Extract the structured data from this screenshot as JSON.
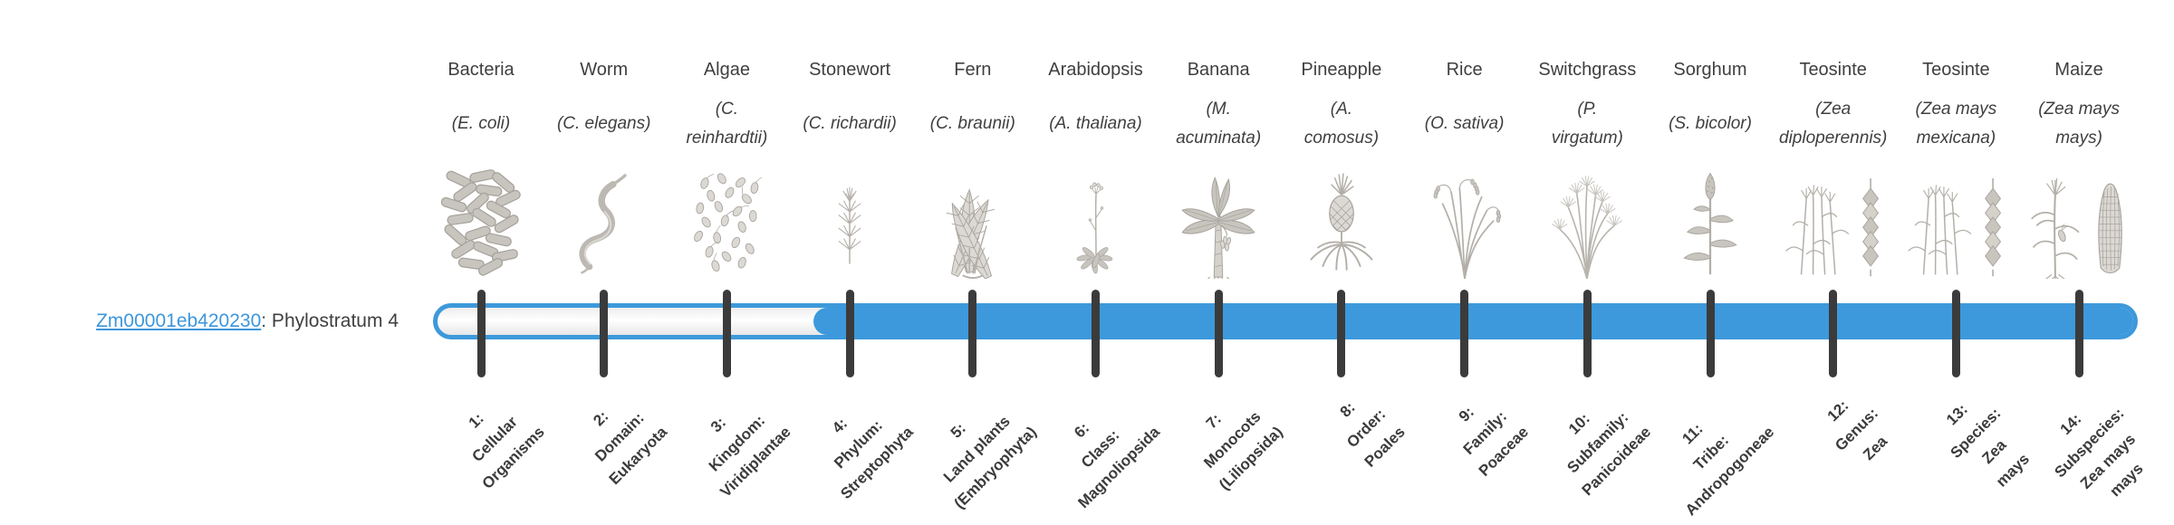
{
  "gene": {
    "id": "Zm00001eb420230",
    "suffix": ": Phylostratum 4",
    "phylostratum_label": "Phylostratum 4",
    "phylostratum": 4
  },
  "figure": {
    "type": "phylostratigraphy-timeline",
    "total_stages": 14,
    "fill_from_stage": 4
  },
  "colors": {
    "bar_blue": "#3d99db",
    "tick_dark": "#3b3b3b",
    "text_dark": "#3f3f3f",
    "link_blue": "#3d96db",
    "illustration_gray": "#a6a29b"
  },
  "stages": [
    {
      "number": 1,
      "organism": "Bacteria",
      "scientific_name": "(E. coli)",
      "scientific_name_lines": [
        "(E. coli)"
      ],
      "rank_label": "1: Cellular Organisms",
      "rank_label_lines": [
        "1:",
        "Cellular",
        "Organisms"
      ],
      "icon": "bacteria-illustration"
    },
    {
      "number": 2,
      "organism": "Worm",
      "scientific_name": "(C. elegans)",
      "scientific_name_lines": [
        "(C. elegans)"
      ],
      "rank_label": "2: Domain: Eukaryota",
      "rank_label_lines": [
        "2:",
        "Domain:",
        "Eukaryota"
      ],
      "icon": "worm-illustration"
    },
    {
      "number": 3,
      "organism": "Algae",
      "scientific_name": "(C. reinhardtii)",
      "scientific_name_lines": [
        "(C.",
        "reinhardtii)"
      ],
      "rank_label": "3: Kingdom: Viridiplantae",
      "rank_label_lines": [
        "3:",
        "Kingdom:",
        "Viridiplantae"
      ],
      "icon": "algae-illustration"
    },
    {
      "number": 4,
      "organism": "Stonewort",
      "scientific_name": "(C. richardii)",
      "scientific_name_lines": [
        "(C. richardii)"
      ],
      "rank_label": "4: Phylum: Streptophyta",
      "rank_label_lines": [
        "4:",
        "Phylum:",
        "Streptophyta"
      ],
      "icon": "stonewort-illustration"
    },
    {
      "number": 5,
      "organism": "Fern",
      "scientific_name": "(C. braunii)",
      "scientific_name_lines": [
        "(C. braunii)"
      ],
      "rank_label": "5: Land plants (Embryophyta)",
      "rank_label_lines": [
        "5:",
        "Land plants",
        "(Embryophyta)"
      ],
      "icon": "fern-illustration"
    },
    {
      "number": 6,
      "organism": "Arabidopsis",
      "scientific_name": "(A. thaliana)",
      "scientific_name_lines": [
        "(A. thaliana)"
      ],
      "rank_label": "6: Class: Magnoliopsida",
      "rank_label_lines": [
        "6:",
        "Class:",
        "Magnoliopsida"
      ],
      "icon": "arabidopsis-illustration"
    },
    {
      "number": 7,
      "organism": "Banana",
      "scientific_name": "(M. acuminata)",
      "scientific_name_lines": [
        "(M.",
        "acuminata)"
      ],
      "rank_label": "7: Monocots (Liliopsida)",
      "rank_label_lines": [
        "7:",
        "Monocots",
        "(Liliopsida)"
      ],
      "icon": "banana-illustration"
    },
    {
      "number": 8,
      "organism": "Pineapple",
      "scientific_name": "(A. comosus)",
      "scientific_name_lines": [
        "(A.",
        "comosus)"
      ],
      "rank_label": "8: Order: Poales",
      "rank_label_lines": [
        "8:",
        "Order:",
        "Poales"
      ],
      "icon": "pineapple-illustration"
    },
    {
      "number": 9,
      "organism": "Rice",
      "scientific_name": "(O. sativa)",
      "scientific_name_lines": [
        "(O. sativa)"
      ],
      "rank_label": "9: Family: Poaceae",
      "rank_label_lines": [
        "9:",
        "Family:",
        "Poaceae"
      ],
      "icon": "rice-illustration"
    },
    {
      "number": 10,
      "organism": "Switchgrass",
      "scientific_name": "(P. virgatum)",
      "scientific_name_lines": [
        "(P.",
        "virgatum)"
      ],
      "rank_label": "10: Subfamily: Panicoideae",
      "rank_label_lines": [
        "10:",
        "Subfamily:",
        "Panicoideae"
      ],
      "icon": "switchgrass-illustration"
    },
    {
      "number": 11,
      "organism": "Sorghum",
      "scientific_name": "(S. bicolor)",
      "scientific_name_lines": [
        "(S. bicolor)"
      ],
      "rank_label": "11: Tribe: Andropogoneae",
      "rank_label_lines": [
        "11:",
        "Tribe:",
        "Andropogoneae"
      ],
      "icon": "teosinte-sorghum-illustration"
    },
    {
      "number": 12,
      "organism": "Teosinte",
      "scientific_name": "(Zea diploperennis)",
      "scientific_name_lines": [
        "(Zea",
        "diploperennis)"
      ],
      "rank_label": "12: Genus: Zea",
      "rank_label_lines": [
        "12:",
        "Genus:",
        "Zea"
      ],
      "icon": "teosinte-illustration"
    },
    {
      "number": 13,
      "organism": "Teosinte",
      "scientific_name": "(Zea mays mexicana)",
      "scientific_name_lines": [
        "(Zea mays",
        "mexicana)"
      ],
      "rank_label": "13: Species: Zea mays",
      "rank_label_lines": [
        "13:",
        "Species:",
        "Zea",
        "mays"
      ],
      "icon": "teosinte-illustration"
    },
    {
      "number": 14,
      "organism": "Maize",
      "scientific_name": "(Zea mays mays)",
      "scientific_name_lines": [
        "(Zea mays",
        "mays)"
      ],
      "rank_label": "14: Subspecies: Zea mays mays",
      "rank_label_lines": [
        "14:",
        "Subspecies:",
        "Zea mays",
        "mays"
      ],
      "icon": "maize-illustration"
    }
  ]
}
